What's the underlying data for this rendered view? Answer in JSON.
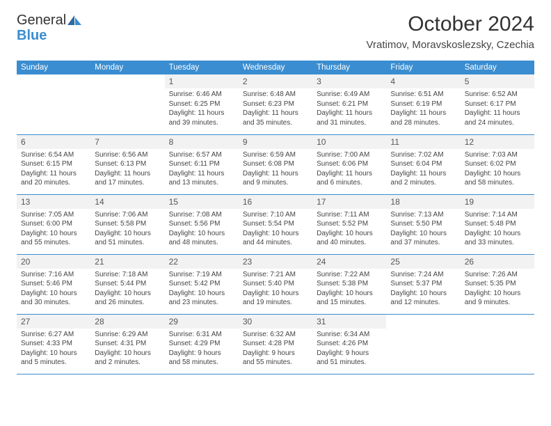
{
  "logo": {
    "general": "General",
    "blue": "Blue"
  },
  "title": "October 2024",
  "location": "Vratimov, Moravskoslezsky, Czechia",
  "header_bg": "#3a8dd0",
  "header_fg": "#ffffff",
  "border_color": "#3a8dd0",
  "text_color": "#444444",
  "daynum_bg": "#f2f2f2",
  "font_family": "Arial",
  "day_headers": [
    "Sunday",
    "Monday",
    "Tuesday",
    "Wednesday",
    "Thursday",
    "Friday",
    "Saturday"
  ],
  "weeks": [
    [
      null,
      null,
      {
        "n": "1",
        "sr": "6:46 AM",
        "ss": "6:25 PM",
        "dl": "11 hours and 39 minutes."
      },
      {
        "n": "2",
        "sr": "6:48 AM",
        "ss": "6:23 PM",
        "dl": "11 hours and 35 minutes."
      },
      {
        "n": "3",
        "sr": "6:49 AM",
        "ss": "6:21 PM",
        "dl": "11 hours and 31 minutes."
      },
      {
        "n": "4",
        "sr": "6:51 AM",
        "ss": "6:19 PM",
        "dl": "11 hours and 28 minutes."
      },
      {
        "n": "5",
        "sr": "6:52 AM",
        "ss": "6:17 PM",
        "dl": "11 hours and 24 minutes."
      }
    ],
    [
      {
        "n": "6",
        "sr": "6:54 AM",
        "ss": "6:15 PM",
        "dl": "11 hours and 20 minutes."
      },
      {
        "n": "7",
        "sr": "6:56 AM",
        "ss": "6:13 PM",
        "dl": "11 hours and 17 minutes."
      },
      {
        "n": "8",
        "sr": "6:57 AM",
        "ss": "6:11 PM",
        "dl": "11 hours and 13 minutes."
      },
      {
        "n": "9",
        "sr": "6:59 AM",
        "ss": "6:08 PM",
        "dl": "11 hours and 9 minutes."
      },
      {
        "n": "10",
        "sr": "7:00 AM",
        "ss": "6:06 PM",
        "dl": "11 hours and 6 minutes."
      },
      {
        "n": "11",
        "sr": "7:02 AM",
        "ss": "6:04 PM",
        "dl": "11 hours and 2 minutes."
      },
      {
        "n": "12",
        "sr": "7:03 AM",
        "ss": "6:02 PM",
        "dl": "10 hours and 58 minutes."
      }
    ],
    [
      {
        "n": "13",
        "sr": "7:05 AM",
        "ss": "6:00 PM",
        "dl": "10 hours and 55 minutes."
      },
      {
        "n": "14",
        "sr": "7:06 AM",
        "ss": "5:58 PM",
        "dl": "10 hours and 51 minutes."
      },
      {
        "n": "15",
        "sr": "7:08 AM",
        "ss": "5:56 PM",
        "dl": "10 hours and 48 minutes."
      },
      {
        "n": "16",
        "sr": "7:10 AM",
        "ss": "5:54 PM",
        "dl": "10 hours and 44 minutes."
      },
      {
        "n": "17",
        "sr": "7:11 AM",
        "ss": "5:52 PM",
        "dl": "10 hours and 40 minutes."
      },
      {
        "n": "18",
        "sr": "7:13 AM",
        "ss": "5:50 PM",
        "dl": "10 hours and 37 minutes."
      },
      {
        "n": "19",
        "sr": "7:14 AM",
        "ss": "5:48 PM",
        "dl": "10 hours and 33 minutes."
      }
    ],
    [
      {
        "n": "20",
        "sr": "7:16 AM",
        "ss": "5:46 PM",
        "dl": "10 hours and 30 minutes."
      },
      {
        "n": "21",
        "sr": "7:18 AM",
        "ss": "5:44 PM",
        "dl": "10 hours and 26 minutes."
      },
      {
        "n": "22",
        "sr": "7:19 AM",
        "ss": "5:42 PM",
        "dl": "10 hours and 23 minutes."
      },
      {
        "n": "23",
        "sr": "7:21 AM",
        "ss": "5:40 PM",
        "dl": "10 hours and 19 minutes."
      },
      {
        "n": "24",
        "sr": "7:22 AM",
        "ss": "5:38 PM",
        "dl": "10 hours and 15 minutes."
      },
      {
        "n": "25",
        "sr": "7:24 AM",
        "ss": "5:37 PM",
        "dl": "10 hours and 12 minutes."
      },
      {
        "n": "26",
        "sr": "7:26 AM",
        "ss": "5:35 PM",
        "dl": "10 hours and 9 minutes."
      }
    ],
    [
      {
        "n": "27",
        "sr": "6:27 AM",
        "ss": "4:33 PM",
        "dl": "10 hours and 5 minutes."
      },
      {
        "n": "28",
        "sr": "6:29 AM",
        "ss": "4:31 PM",
        "dl": "10 hours and 2 minutes."
      },
      {
        "n": "29",
        "sr": "6:31 AM",
        "ss": "4:29 PM",
        "dl": "9 hours and 58 minutes."
      },
      {
        "n": "30",
        "sr": "6:32 AM",
        "ss": "4:28 PM",
        "dl": "9 hours and 55 minutes."
      },
      {
        "n": "31",
        "sr": "6:34 AM",
        "ss": "4:26 PM",
        "dl": "9 hours and 51 minutes."
      },
      null,
      null
    ]
  ],
  "labels": {
    "sunrise": "Sunrise:",
    "sunset": "Sunset:",
    "daylight": "Daylight:"
  }
}
